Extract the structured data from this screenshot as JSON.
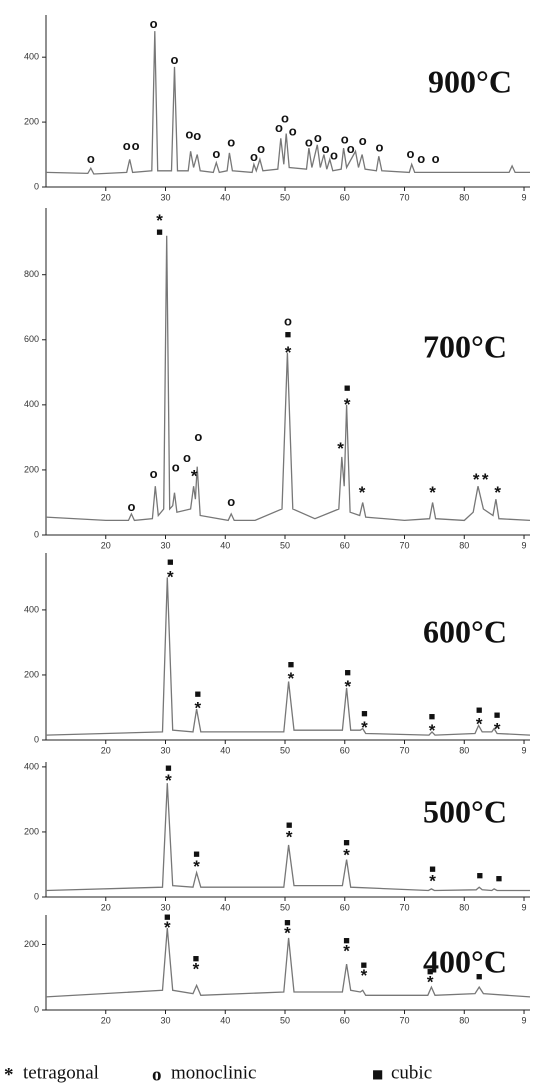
{
  "chart_data": [
    {
      "type": "line",
      "title": "900°C",
      "color": "#777777",
      "xlim": [
        10,
        91
      ],
      "ylim": [
        0,
        530
      ],
      "xticks": [
        20,
        30,
        40,
        50,
        60,
        70,
        80,
        {
          "value": 90,
          "label": "9"
        }
      ],
      "yticks": [
        0,
        200,
        400
      ],
      "x": [
        10,
        17,
        17.5,
        18,
        23.5,
        24,
        24.5,
        27.7,
        28.2,
        28.7,
        31,
        31.5,
        32,
        33.8,
        34.2,
        34.7,
        35.3,
        35.8,
        38,
        38.5,
        39,
        40.3,
        40.7,
        41.2,
        44.5,
        44.8,
        45.2,
        45.8,
        46.3,
        48.8,
        49.3,
        49.8,
        50.2,
        50.7,
        53.6,
        54,
        54.5,
        55.4,
        55.9,
        56.5,
        57,
        57.5,
        58,
        59.4,
        59.8,
        60.3,
        61.8,
        62.3,
        62.9,
        63.4,
        65.3,
        65.7,
        66.2,
        70.8,
        71.2,
        71.7,
        80,
        87.5,
        88,
        88.5,
        91
      ],
      "values": [
        45,
        42,
        58,
        40,
        45,
        85,
        45,
        50,
        480,
        50,
        50,
        370,
        50,
        50,
        110,
        60,
        100,
        50,
        45,
        75,
        45,
        50,
        105,
        50,
        45,
        70,
        50,
        85,
        50,
        55,
        150,
        70,
        165,
        60,
        55,
        120,
        60,
        130,
        60,
        100,
        55,
        85,
        50,
        55,
        120,
        60,
        110,
        60,
        100,
        55,
        50,
        95,
        50,
        45,
        70,
        45,
        45,
        45,
        65,
        45,
        45
      ],
      "annotations": [
        {
          "x": 17.5,
          "y": 85,
          "text": "o"
        },
        {
          "x": 23.5,
          "y": 125,
          "text": "o"
        },
        {
          "x": 25,
          "y": 125,
          "text": "o"
        },
        {
          "x": 28,
          "y": 500,
          "text": "o"
        },
        {
          "x": 31.5,
          "y": 390,
          "text": "o"
        },
        {
          "x": 34,
          "y": 160,
          "text": "o"
        },
        {
          "x": 35.3,
          "y": 155,
          "text": "o"
        },
        {
          "x": 38.5,
          "y": 100,
          "text": "o"
        },
        {
          "x": 41,
          "y": 135,
          "text": "o"
        },
        {
          "x": 44.8,
          "y": 90,
          "text": "o"
        },
        {
          "x": 46,
          "y": 115,
          "text": "o"
        },
        {
          "x": 49,
          "y": 180,
          "text": "o"
        },
        {
          "x": 50,
          "y": 210,
          "text": "o"
        },
        {
          "x": 51.3,
          "y": 170,
          "text": "o"
        },
        {
          "x": 54,
          "y": 135,
          "text": "o"
        },
        {
          "x": 55.5,
          "y": 150,
          "text": "o"
        },
        {
          "x": 56.8,
          "y": 115,
          "text": "o"
        },
        {
          "x": 58.2,
          "y": 95,
          "text": "o"
        },
        {
          "x": 60,
          "y": 145,
          "text": "o"
        },
        {
          "x": 61,
          "y": 115,
          "text": "o"
        },
        {
          "x": 63,
          "y": 140,
          "text": "o"
        },
        {
          "x": 65.8,
          "y": 120,
          "text": "o"
        },
        {
          "x": 71,
          "y": 100,
          "text": "o"
        },
        {
          "x": 72.8,
          "y": 85,
          "text": "o"
        },
        {
          "x": 75.2,
          "y": 85,
          "text": "o"
        }
      ]
    },
    {
      "type": "line",
      "title": "700°C",
      "color": "#777777",
      "xlim": [
        10,
        91
      ],
      "ylim": [
        0,
        1005
      ],
      "xticks": [
        20,
        30,
        40,
        50,
        60,
        70,
        80,
        {
          "value": 90,
          "label": "9"
        }
      ],
      "yticks": [
        0,
        200,
        400,
        600,
        800
      ],
      "x": [
        10,
        20,
        23.8,
        24.3,
        24.8,
        27.8,
        28.3,
        28.8,
        29.7,
        30.2,
        30.7,
        31.2,
        31.5,
        31.9,
        34.2,
        34.7,
        35,
        35.3,
        35.8,
        40.5,
        41,
        41.5,
        45,
        49.5,
        50.4,
        51.3,
        55,
        59,
        59.5,
        59.9,
        60.3,
        60.9,
        62.5,
        63,
        63.5,
        70,
        74.2,
        74.7,
        75.2,
        80,
        81.5,
        82.3,
        83.2,
        84.8,
        85.3,
        85.8,
        91
      ],
      "values": [
        55,
        45,
        45,
        65,
        45,
        50,
        150,
        60,
        80,
        920,
        80,
        90,
        130,
        70,
        80,
        150,
        110,
        210,
        60,
        45,
        65,
        45,
        45,
        80,
        560,
        80,
        50,
        80,
        240,
        150,
        400,
        70,
        60,
        100,
        55,
        45,
        50,
        100,
        50,
        45,
        70,
        150,
        80,
        60,
        110,
        50,
        45
      ],
      "annotations": [
        {
          "x": 29,
          "y": 930,
          "text": "■"
        },
        {
          "x": 29,
          "y": 975,
          "text": "*"
        },
        {
          "x": 24.3,
          "y": 85,
          "text": "o"
        },
        {
          "x": 28,
          "y": 185,
          "text": "o"
        },
        {
          "x": 31.7,
          "y": 205,
          "text": "o"
        },
        {
          "x": 33.6,
          "y": 235,
          "text": "o"
        },
        {
          "x": 35.5,
          "y": 300,
          "text": "o"
        },
        {
          "x": 34.8,
          "y": 190,
          "text": "*"
        },
        {
          "x": 41,
          "y": 100,
          "text": "o"
        },
        {
          "x": 50.5,
          "y": 655,
          "text": "o"
        },
        {
          "x": 50.5,
          "y": 615,
          "text": "■"
        },
        {
          "x": 50.5,
          "y": 570,
          "text": "*"
        },
        {
          "x": 60.4,
          "y": 450,
          "text": "■"
        },
        {
          "x": 60.4,
          "y": 410,
          "text": "*"
        },
        {
          "x": 59.3,
          "y": 275,
          "text": "*"
        },
        {
          "x": 62.9,
          "y": 140,
          "text": "*"
        },
        {
          "x": 74.7,
          "y": 140,
          "text": "*"
        },
        {
          "x": 82,
          "y": 180,
          "text": "*"
        },
        {
          "x": 83.5,
          "y": 180,
          "text": "*"
        },
        {
          "x": 85.6,
          "y": 140,
          "text": "*"
        }
      ]
    },
    {
      "type": "line",
      "title": "600°C",
      "color": "#777777",
      "xlim": [
        10,
        91
      ],
      "ylim": [
        0,
        575
      ],
      "xticks": [
        20,
        30,
        40,
        50,
        60,
        70,
        80,
        {
          "value": 90,
          "label": "9"
        }
      ],
      "yticks": [
        0,
        200,
        400
      ],
      "x": [
        10,
        29.5,
        30.3,
        31.2,
        34.6,
        35.2,
        35.9,
        49.8,
        50.6,
        51.5,
        59.6,
        60.3,
        61,
        62.6,
        63,
        63.5,
        74.1,
        74.6,
        75.1,
        81.8,
        82.4,
        83,
        84.6,
        85,
        85.5,
        91
      ],
      "values": [
        15,
        25,
        500,
        30,
        25,
        95,
        25,
        25,
        180,
        30,
        30,
        160,
        30,
        30,
        35,
        20,
        15,
        25,
        15,
        20,
        45,
        25,
        25,
        35,
        20,
        15
      ],
      "annotations": [
        {
          "x": 30.8,
          "y": 545,
          "text": "■"
        },
        {
          "x": 30.8,
          "y": 510,
          "text": "*"
        },
        {
          "x": 35.4,
          "y": 140,
          "text": "■"
        },
        {
          "x": 35.4,
          "y": 108,
          "text": "*"
        },
        {
          "x": 51,
          "y": 230,
          "text": "■"
        },
        {
          "x": 51,
          "y": 198,
          "text": "*"
        },
        {
          "x": 60.5,
          "y": 205,
          "text": "■"
        },
        {
          "x": 60.5,
          "y": 173,
          "text": "*"
        },
        {
          "x": 63.3,
          "y": 80,
          "text": "■"
        },
        {
          "x": 63.3,
          "y": 48,
          "text": "*"
        },
        {
          "x": 74.6,
          "y": 70,
          "text": "■"
        },
        {
          "x": 74.6,
          "y": 38,
          "text": "*"
        },
        {
          "x": 82.5,
          "y": 90,
          "text": "■"
        },
        {
          "x": 82.5,
          "y": 58,
          "text": "*"
        },
        {
          "x": 85.5,
          "y": 75,
          "text": "■"
        },
        {
          "x": 85.5,
          "y": 43,
          "text": "*"
        }
      ]
    },
    {
      "type": "line",
      "title": "500°C",
      "color": "#777777",
      "xlim": [
        10,
        91
      ],
      "ylim": [
        0,
        415
      ],
      "xticks": [
        20,
        30,
        40,
        50,
        60,
        70,
        80,
        {
          "value": 90,
          "label": "9"
        }
      ],
      "yticks": [
        0,
        200,
        400
      ],
      "x": [
        10,
        29.5,
        30.3,
        31.2,
        34.6,
        35.2,
        35.9,
        49.8,
        50.6,
        51.5,
        59.6,
        60.3,
        61,
        74,
        74.5,
        75,
        82,
        82.5,
        83,
        84.6,
        85,
        85.5,
        91
      ],
      "values": [
        20,
        30,
        350,
        35,
        30,
        75,
        30,
        30,
        160,
        35,
        35,
        115,
        30,
        20,
        25,
        20,
        22,
        30,
        22,
        20,
        25,
        20,
        20
      ],
      "annotations": [
        {
          "x": 30.5,
          "y": 395,
          "text": "■"
        },
        {
          "x": 30.5,
          "y": 368,
          "text": "*"
        },
        {
          "x": 35.2,
          "y": 130,
          "text": "■"
        },
        {
          "x": 35.2,
          "y": 103,
          "text": "*"
        },
        {
          "x": 50.7,
          "y": 220,
          "text": "■"
        },
        {
          "x": 50.7,
          "y": 193,
          "text": "*"
        },
        {
          "x": 60.3,
          "y": 165,
          "text": "■"
        },
        {
          "x": 60.3,
          "y": 138,
          "text": "*"
        },
        {
          "x": 74.7,
          "y": 85,
          "text": "■"
        },
        {
          "x": 74.7,
          "y": 58,
          "text": "*"
        },
        {
          "x": 82.6,
          "y": 65,
          "text": "■"
        },
        {
          "x": 85.8,
          "y": 55,
          "text": "■"
        }
      ]
    },
    {
      "type": "line",
      "title": "400°C",
      "color": "#777777",
      "xlim": [
        10,
        91
      ],
      "ylim": [
        0,
        290
      ],
      "xticks": [
        20,
        30,
        40,
        50,
        60,
        70,
        80,
        {
          "value": 90,
          "label": "9"
        }
      ],
      "yticks": [
        0,
        200
      ],
      "x": [
        10,
        29.5,
        30.3,
        31.2,
        34.6,
        35.2,
        35.9,
        49.8,
        50.6,
        51.5,
        59.6,
        60.3,
        61,
        62.6,
        63,
        63.5,
        73.9,
        74.5,
        75.1,
        81.8,
        82.5,
        83.2,
        91
      ],
      "values": [
        40,
        60,
        250,
        60,
        50,
        75,
        45,
        55,
        220,
        55,
        55,
        140,
        60,
        55,
        60,
        45,
        45,
        70,
        45,
        50,
        70,
        50,
        40
      ],
      "annotations": [
        {
          "x": 30.3,
          "y": 282,
          "text": "■"
        },
        {
          "x": 30.3,
          "y": 261,
          "text": "*"
        },
        {
          "x": 35.1,
          "y": 155,
          "text": "■"
        },
        {
          "x": 35.1,
          "y": 134,
          "text": "*"
        },
        {
          "x": 50.4,
          "y": 265,
          "text": "■"
        },
        {
          "x": 50.4,
          "y": 244,
          "text": "*"
        },
        {
          "x": 60.3,
          "y": 210,
          "text": "■"
        },
        {
          "x": 60.3,
          "y": 189,
          "text": "*"
        },
        {
          "x": 63.2,
          "y": 135,
          "text": "■"
        },
        {
          "x": 63.2,
          "y": 114,
          "text": "*"
        },
        {
          "x": 74.3,
          "y": 115,
          "text": "■"
        },
        {
          "x": 74.3,
          "y": 94,
          "text": "*"
        },
        {
          "x": 82.5,
          "y": 100,
          "text": "■"
        }
      ]
    }
  ],
  "legend": [
    {
      "symbol": "*",
      "label": "tetragonal"
    },
    {
      "symbol": "o",
      "label": "monoclinic"
    },
    {
      "symbol": "■",
      "label": "cubic"
    }
  ]
}
